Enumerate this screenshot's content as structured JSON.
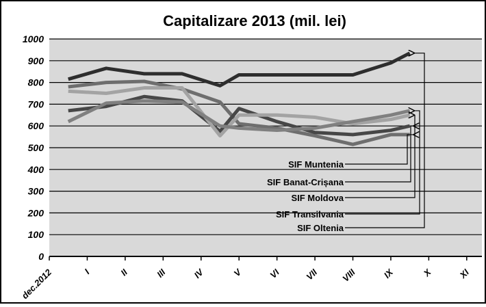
{
  "chart_data": {
    "type": "line",
    "title": "Capitalizare 2013 (mil. lei)",
    "x": [
      0.5,
      1.5,
      2.5,
      3.5,
      4.5,
      5,
      6,
      7,
      8,
      9,
      9.5
    ],
    "xlim": [
      0,
      11.4
    ],
    "xticks": [
      {
        "value": 0,
        "label": "dec.2012"
      },
      {
        "value": 1,
        "label": "I"
      },
      {
        "value": 2,
        "label": "II"
      },
      {
        "value": 3,
        "label": "III"
      },
      {
        "value": 4,
        "label": "IV"
      },
      {
        "value": 5,
        "label": "V"
      },
      {
        "value": 6,
        "label": "VI"
      },
      {
        "value": 7,
        "label": "VII"
      },
      {
        "value": 8,
        "label": "VIII"
      },
      {
        "value": 9,
        "label": "IX"
      },
      {
        "value": 10,
        "label": "X"
      },
      {
        "value": 11,
        "label": "XI"
      }
    ],
    "ylim": [
      0,
      1000
    ],
    "yticks": [
      0,
      100,
      200,
      300,
      400,
      500,
      600,
      700,
      800,
      900,
      1000
    ],
    "grid": true,
    "series": [
      {
        "name": "SIF Muntenia",
        "color": "#6e6e6e",
        "values": [
          780,
          800,
          805,
          770,
          710,
          610,
          590,
          555,
          515,
          560,
          560
        ]
      },
      {
        "name": "SIF Banat-Crișana",
        "color": "#474747",
        "values": [
          670,
          690,
          735,
          715,
          575,
          680,
          620,
          570,
          560,
          580,
          600
        ]
      },
      {
        "name": "SIF Moldova",
        "color": "#a3a3a3",
        "values": [
          760,
          750,
          775,
          775,
          555,
          650,
          650,
          640,
          610,
          630,
          650
        ]
      },
      {
        "name": "SIF Transilvania",
        "color": "#808080",
        "values": [
          620,
          705,
          715,
          710,
          600,
          590,
          580,
          590,
          620,
          650,
          670
        ]
      },
      {
        "name": "SIF Oltenia",
        "color": "#2e2e2e",
        "values": [
          815,
          865,
          840,
          840,
          785,
          835,
          835,
          835,
          835,
          890,
          935
        ]
      }
    ]
  }
}
